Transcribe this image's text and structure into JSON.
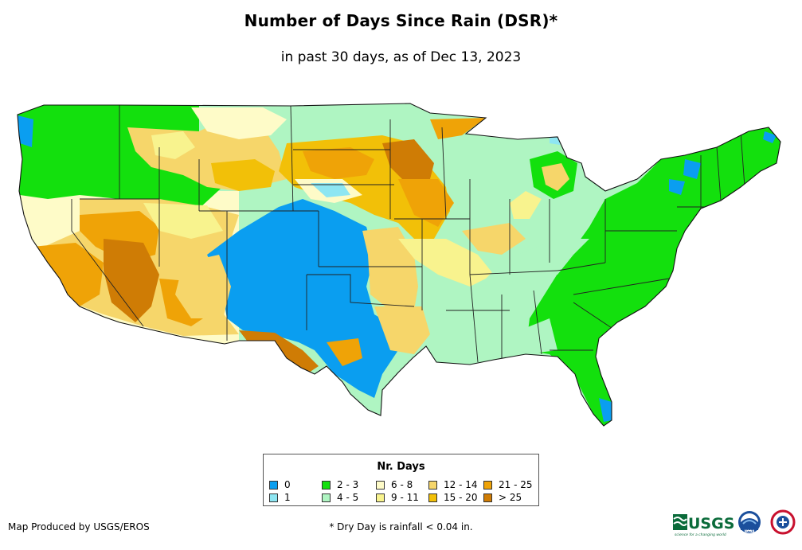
{
  "title": "Number of Days Since Rain (DSR)*",
  "subtitle": "in past 30 days, as of Dec 13, 2023",
  "legend": {
    "title": "Nr. Days",
    "items": [
      {
        "label": "0",
        "color": "#0a9ef0"
      },
      {
        "label": "1",
        "color": "#8ee6f2"
      },
      {
        "label": "2 - 3",
        "color": "#13e00d"
      },
      {
        "label": "4 - 5",
        "color": "#aff5c2"
      },
      {
        "label": "6 - 8",
        "color": "#fefbc8"
      },
      {
        "label": "9 - 11",
        "color": "#f8f38e"
      },
      {
        "label": "12 - 14",
        "color": "#f6d66a"
      },
      {
        "label": "15 - 20",
        "color": "#f2c008"
      },
      {
        "label": "21 - 25",
        "color": "#efa307"
      },
      {
        "label": "> 25",
        "color": "#cf7c05"
      }
    ]
  },
  "footer": {
    "credit": "Map Produced by USGS/EROS",
    "note": "* Dry Day is rainfall < 0.04 in."
  },
  "logos": {
    "usgs_text": "USGS",
    "usgs_tagline": "science for a changing world",
    "noaa_text": "NOAA"
  }
}
